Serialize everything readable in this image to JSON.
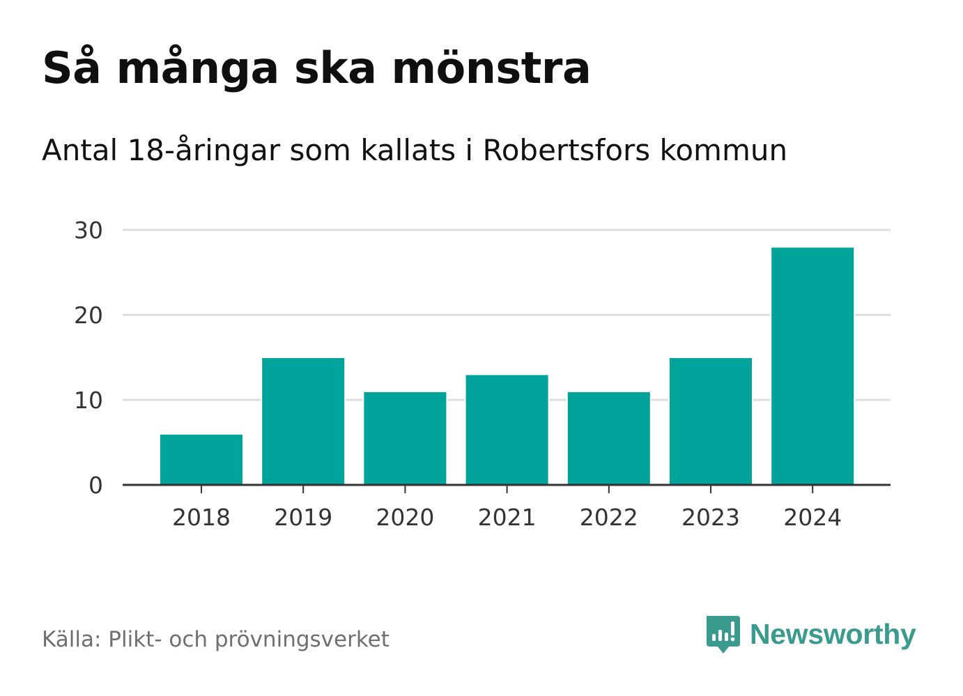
{
  "header": {
    "title": "Så många ska mönstra",
    "subtitle": "Antal 18-åringar som kallats i Robertsfors kommun"
  },
  "footer": {
    "source": "Källa: Plikt- och prövningsverket",
    "brand": "Newsworthy",
    "brand_icon": "newsworthy-logo-icon"
  },
  "colors": {
    "bar": "#00a39a",
    "grid": "#dddddd",
    "axis": "#333333",
    "brand": "#3b9a8e"
  },
  "chart_data": {
    "type": "bar",
    "title": "Så många ska mönstra",
    "subtitle": "Antal 18-åringar som kallats i Robertsfors kommun",
    "categories": [
      "2018",
      "2019",
      "2020",
      "2021",
      "2022",
      "2023",
      "2024"
    ],
    "values": [
      6,
      15,
      11,
      13,
      11,
      15,
      28
    ],
    "xlabel": "",
    "ylabel": "",
    "ylim": [
      0,
      30
    ],
    "yticks": [
      0,
      10,
      20,
      30
    ],
    "grid": true,
    "legend": "none"
  }
}
